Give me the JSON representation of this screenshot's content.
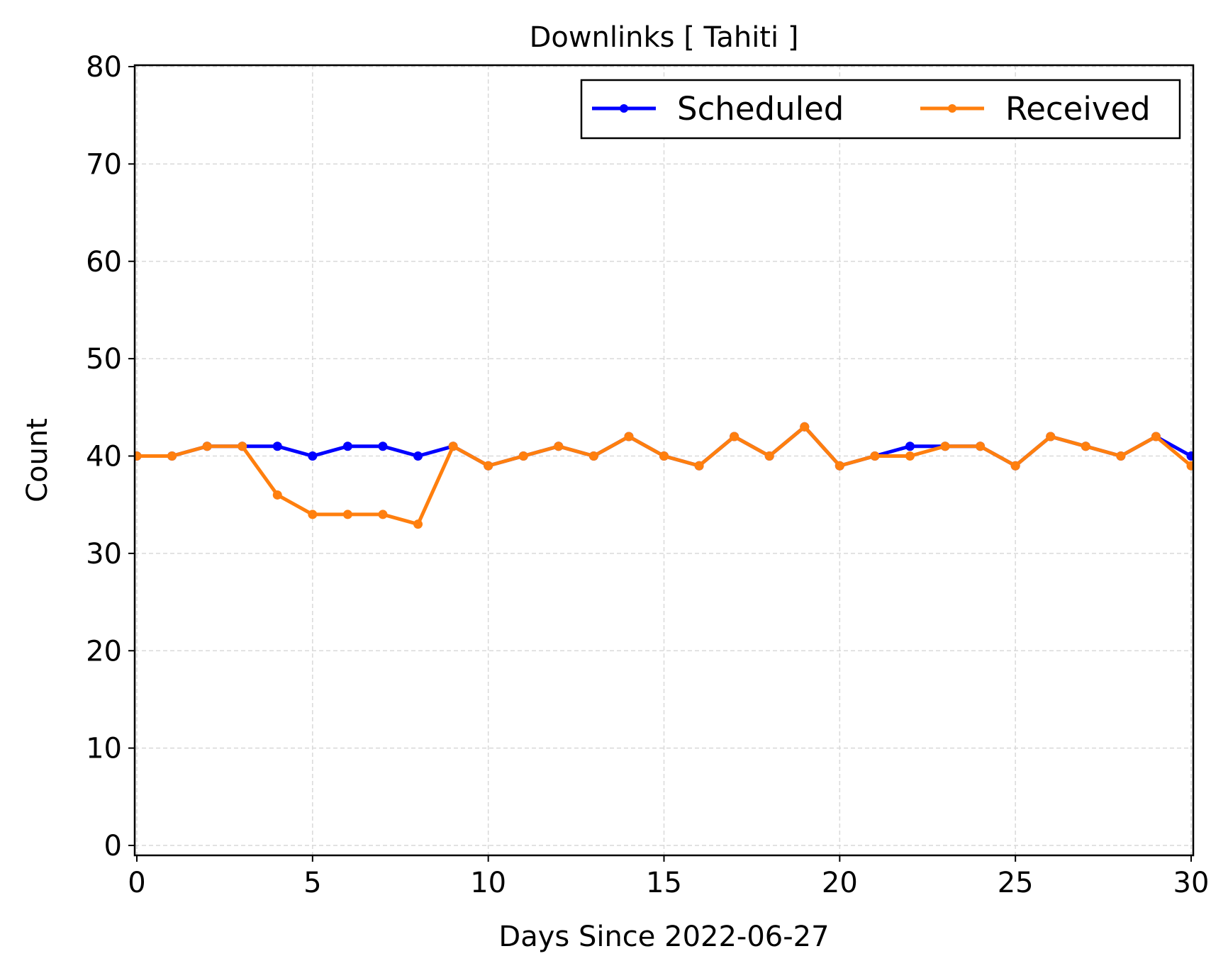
{
  "chart_data": {
    "type": "line",
    "title": "Downlinks [ Tahiti ]",
    "xlabel": "Days Since 2022-06-27",
    "ylabel": "Count",
    "xlim": [
      0,
      30
    ],
    "ylim": [
      0,
      80
    ],
    "xticks": [
      0,
      5,
      10,
      15,
      20,
      25,
      30
    ],
    "yticks": [
      0,
      10,
      20,
      30,
      40,
      50,
      60,
      70,
      80
    ],
    "grid": true,
    "legend_position": "top-right",
    "legend_columns": 2,
    "x": [
      0,
      1,
      2,
      3,
      4,
      5,
      6,
      7,
      8,
      9,
      10,
      11,
      12,
      13,
      14,
      15,
      16,
      17,
      18,
      19,
      20,
      21,
      22,
      23,
      24,
      25,
      26,
      27,
      28,
      29,
      30
    ],
    "series": [
      {
        "name": "Scheduled",
        "color": "#0000ff",
        "values": [
          40,
          40,
          41,
          41,
          41,
          40,
          41,
          41,
          40,
          41,
          39,
          40,
          41,
          40,
          42,
          40,
          39,
          42,
          40,
          43,
          39,
          40,
          41,
          41,
          41,
          39,
          42,
          41,
          40,
          42,
          40
        ]
      },
      {
        "name": "Received",
        "color": "#ff7f0e",
        "values": [
          40,
          40,
          41,
          41,
          36,
          34,
          34,
          34,
          33,
          41,
          39,
          40,
          41,
          40,
          42,
          40,
          39,
          42,
          40,
          43,
          39,
          40,
          40,
          41,
          41,
          39,
          42,
          41,
          40,
          42,
          39
        ]
      }
    ]
  }
}
